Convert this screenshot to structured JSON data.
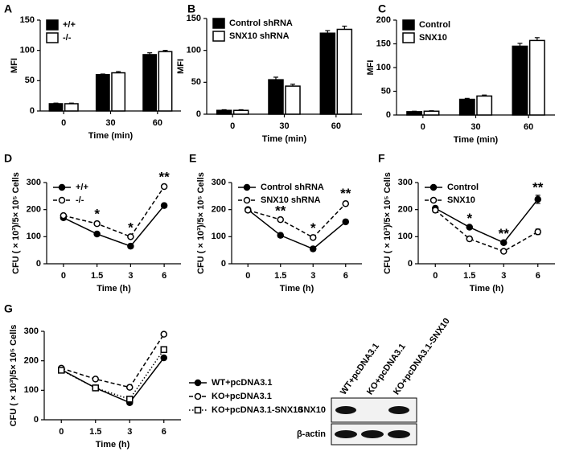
{
  "chart_data": [
    {
      "label": "A",
      "type": "bar",
      "xlabel": "Time (min)",
      "ylabel": "MFI",
      "categories": [
        "0",
        "30",
        "60"
      ],
      "series": [
        {
          "name": "+/+",
          "color": "#000000",
          "values": [
            12,
            60,
            93
          ],
          "errors": [
            1,
            1,
            3
          ]
        },
        {
          "name": "-/-",
          "color": "#ffffff",
          "values": [
            12,
            63,
            98
          ],
          "errors": [
            1,
            2,
            2
          ]
        }
      ],
      "ylim": [
        0,
        150
      ],
      "yticks": [
        0,
        50,
        100,
        150
      ],
      "legend": "upper left"
    },
    {
      "label": "B",
      "type": "bar",
      "xlabel": "Time (min)",
      "ylabel": "MFI",
      "categories": [
        "0",
        "30",
        "60"
      ],
      "series": [
        {
          "name": "Control shRNA",
          "color": "#000000",
          "values": [
            6,
            54,
            127
          ],
          "errors": [
            1,
            4,
            4
          ]
        },
        {
          "name": "SNX10 shRNA",
          "color": "#ffffff",
          "values": [
            6,
            44,
            133
          ],
          "errors": [
            1,
            3,
            5
          ]
        }
      ],
      "ylim": [
        0,
        150
      ],
      "yticks": [
        0,
        50,
        100,
        150
      ],
      "legend": "upper left"
    },
    {
      "label": "C",
      "type": "bar",
      "xlabel": "Time (min)",
      "ylabel": "MFI",
      "categories": [
        "0",
        "30",
        "60"
      ],
      "series": [
        {
          "name": "Control",
          "color": "#000000",
          "values": [
            7,
            33,
            145
          ],
          "errors": [
            1,
            2,
            6
          ]
        },
        {
          "name": "SNX10",
          "color": "#ffffff",
          "values": [
            8,
            40,
            157
          ],
          "errors": [
            1,
            2,
            6
          ]
        }
      ],
      "ylim": [
        0,
        200
      ],
      "yticks": [
        0,
        50,
        100,
        150,
        200
      ],
      "legend": "upper left"
    },
    {
      "label": "D",
      "type": "line",
      "xlabel": "Time (h)",
      "ylabel": "CFU ( × 10³)/5× 10⁵ Cells",
      "categories": [
        "0",
        "1.5",
        "3",
        "6"
      ],
      "series": [
        {
          "name": "+/+",
          "color": "#000000",
          "dash": "solid",
          "marker": "filled-circle",
          "values": [
            170,
            110,
            65,
            215
          ],
          "errors": [
            8,
            3,
            8,
            8
          ]
        },
        {
          "name": "-/-",
          "color": "#000000",
          "dash": "dashed",
          "marker": "open-circle",
          "values": [
            178,
            148,
            100,
            285
          ],
          "errors": [
            6,
            6,
            4,
            6
          ]
        }
      ],
      "ylim": [
        0,
        300
      ],
      "yticks": [
        0,
        100,
        200,
        300
      ],
      "legend": "upper left",
      "annotations": [
        {
          "text": "*",
          "category": "1.5"
        },
        {
          "text": "*",
          "category": "3"
        },
        {
          "text": "**",
          "category": "6"
        }
      ]
    },
    {
      "label": "E",
      "type": "line",
      "xlabel": "Time (h)",
      "ylabel": "CFU ( × 10³)/5× 10⁵ Cells",
      "categories": [
        "0",
        "1.5",
        "3",
        "6"
      ],
      "series": [
        {
          "name": "Control shRNA",
          "color": "#000000",
          "dash": "solid",
          "marker": "filled-circle",
          "values": [
            200,
            105,
            55,
            155
          ],
          "errors": [
            5,
            8,
            8,
            3
          ]
        },
        {
          "name": "SNX10 shRNA",
          "color": "#000000",
          "dash": "dashed",
          "marker": "open-circle",
          "values": [
            198,
            163,
            97,
            222
          ],
          "errors": [
            5,
            4,
            6,
            8
          ]
        }
      ],
      "ylim": [
        0,
        300
      ],
      "yticks": [
        0,
        100,
        200,
        300
      ],
      "legend": "upper left",
      "annotations": [
        {
          "text": "**",
          "category": "1.5"
        },
        {
          "text": "*",
          "category": "3"
        },
        {
          "text": "**",
          "category": "6"
        }
      ]
    },
    {
      "label": "F",
      "type": "line",
      "xlabel": "Time (h)",
      "ylabel": "CFU ( × 10³)/5× 10⁵ Cells",
      "categories": [
        "0",
        "1.5",
        "3",
        "6"
      ],
      "series": [
        {
          "name": "Control",
          "color": "#000000",
          "dash": "solid",
          "marker": "filled-circle",
          "values": [
            205,
            135,
            78,
            238
          ],
          "errors": [
            8,
            3,
            3,
            15
          ]
        },
        {
          "name": "SNX10",
          "color": "#000000",
          "dash": "dashed",
          "marker": "open-circle",
          "values": [
            198,
            92,
            46,
            118
          ],
          "errors": [
            8,
            8,
            3,
            10
          ]
        }
      ],
      "ylim": [
        0,
        300
      ],
      "yticks": [
        0,
        100,
        200,
        300
      ],
      "legend": "upper left",
      "annotations": [
        {
          "text": "*",
          "category": "1.5"
        },
        {
          "text": "**",
          "category": "3"
        },
        {
          "text": "**",
          "category": "6"
        }
      ]
    },
    {
      "label": "G",
      "type": "line",
      "xlabel": "Time (h)",
      "ylabel": "CFU ( × 10³)/5× 10⁵ Cells",
      "categories": [
        "0",
        "1.5",
        "3",
        "6"
      ],
      "series": [
        {
          "name": "WT+pcDNA3.1",
          "color": "#000000",
          "dash": "solid",
          "marker": "filled-circle",
          "values": [
            170,
            108,
            58,
            210
          ],
          "errors": [
            6,
            5,
            3,
            5
          ]
        },
        {
          "name": "KO+pcDNA3.1",
          "color": "#000000",
          "dash": "dashed",
          "marker": "open-circle",
          "values": [
            175,
            138,
            110,
            290
          ],
          "errors": [
            5,
            6,
            6,
            3
          ]
        },
        {
          "name": "KO+pcDNA3.1-SNX10",
          "color": "#000000",
          "dash": "dotted",
          "marker": "open-square",
          "values": [
            168,
            108,
            70,
            238
          ],
          "errors": [
            8,
            4,
            5,
            5
          ]
        }
      ],
      "ylim": [
        0,
        300
      ],
      "yticks": [
        0,
        100,
        200,
        300
      ],
      "legend": "right"
    }
  ],
  "blot": {
    "lanes": [
      "WT+pcDNA3.1",
      "KO+pcDNA3.1",
      "KO+pcDNA3.1-SNX10"
    ],
    "rows": [
      "SNX10",
      "β-actin"
    ]
  }
}
